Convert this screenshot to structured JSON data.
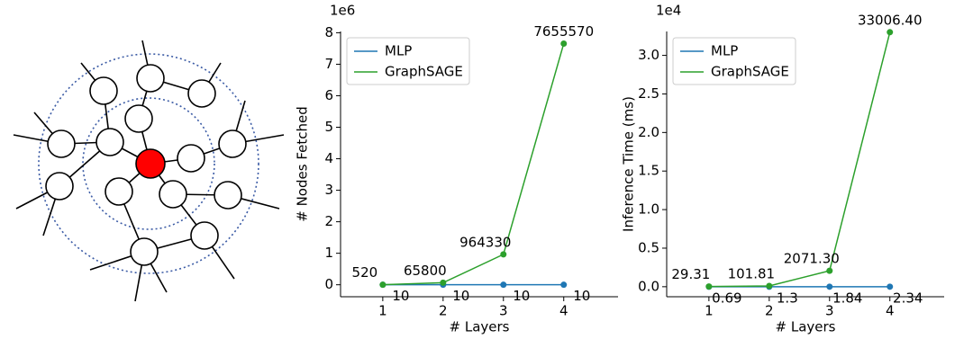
{
  "chart_data": [
    {
      "type": "line",
      "x_label": "# Layers",
      "y_label": "# Nodes Fetched",
      "offset_label": "1e6",
      "x": [
        1,
        2,
        3,
        4
      ],
      "series": [
        {
          "name": "MLP",
          "color": "#1f77b4",
          "values": [
            10,
            10,
            10,
            10
          ]
        },
        {
          "name": "GraphSAGE",
          "color": "#2ca02c",
          "values": [
            520,
            65800,
            964330,
            7655570
          ]
        }
      ],
      "xlim": [
        0.3,
        4.9
      ],
      "xticks": [
        1,
        2,
        3,
        4
      ],
      "ylim": [
        -380000,
        8040000
      ],
      "yticks": [
        {
          "value": 0,
          "label": "0"
        },
        {
          "value": 1000000,
          "label": "1"
        },
        {
          "value": 2000000,
          "label": "2"
        },
        {
          "value": 3000000,
          "label": "3"
        },
        {
          "value": 4000000,
          "label": "4"
        },
        {
          "value": 5000000,
          "label": "5"
        },
        {
          "value": 6000000,
          "label": "6"
        },
        {
          "value": 7000000,
          "label": "7"
        },
        {
          "value": 8000000,
          "label": "8"
        }
      ],
      "legend": "upper left"
    },
    {
      "type": "line",
      "x_label": "# Layers",
      "y_label": "Inference Time (ms)",
      "offset_label": "1e4",
      "x": [
        1,
        2,
        3,
        4
      ],
      "series": [
        {
          "name": "MLP",
          "color": "#1f77b4",
          "values": [
            0.69,
            1.3,
            1.84,
            2.34
          ]
        },
        {
          "name": "GraphSAGE",
          "color": "#2ca02c",
          "values": [
            29.31,
            101.81,
            2071.3,
            33006.4
          ],
          "value_labels": [
            "29.31",
            "101.81",
            "2071.30",
            "33006.40"
          ]
        }
      ],
      "xlim": [
        0.3,
        4.9
      ],
      "xticks": [
        1,
        2,
        3,
        4
      ],
      "ylim": [
        -1300,
        33100
      ],
      "yticks": [
        {
          "value": 0,
          "label": "0.0"
        },
        {
          "value": 5000,
          "label": "0.5"
        },
        {
          "value": 10000,
          "label": "1.0"
        },
        {
          "value": 15000,
          "label": "1.5"
        },
        {
          "value": 20000,
          "label": "2.0"
        },
        {
          "value": 25000,
          "label": "2.5"
        },
        {
          "value": 30000,
          "label": "3.0"
        }
      ],
      "legend": "upper left"
    }
  ]
}
